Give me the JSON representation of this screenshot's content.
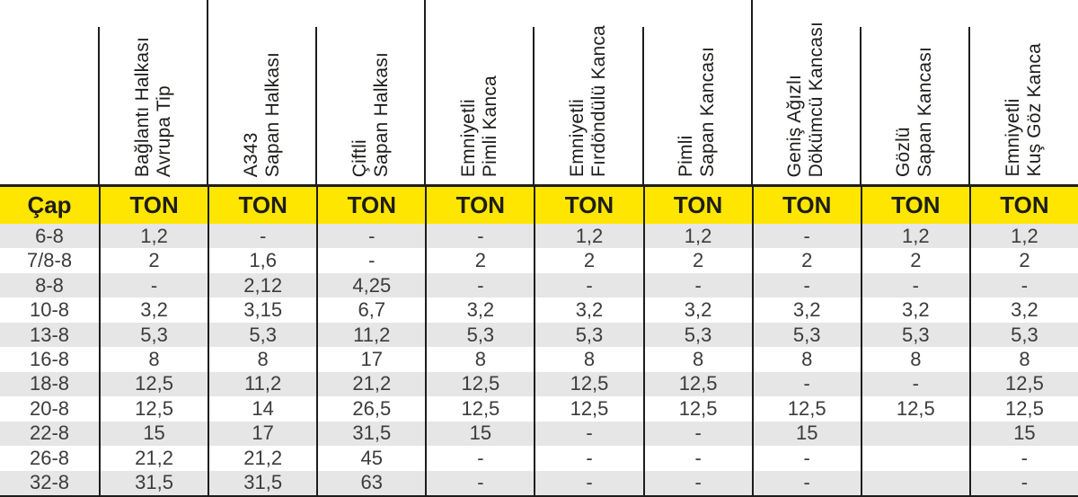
{
  "colors": {
    "header_yellow": "#ffe600",
    "row_stripe": "#e6e6e7",
    "line_black": "#1d1d1b",
    "text_dark": "#3c3c3b"
  },
  "chart_data": {
    "type": "table",
    "cap_label": "Çap",
    "unit_label": "TON",
    "columns": [
      {
        "line1": "Bağlantı Halkası",
        "line2": "Avrupa Tip",
        "group_start": false
      },
      {
        "line1": "A343",
        "line2": "Sapan Halkası",
        "group_start": true
      },
      {
        "line1": "Çiftli",
        "line2": "Sapan Halkası",
        "group_start": false
      },
      {
        "line1": "Emniyetli",
        "line2": "Pimli Kanca",
        "group_start": true
      },
      {
        "line1": "Emniyetli",
        "line2": "Fırdöndülü Kanca",
        "group_start": false
      },
      {
        "line1": "Pimli",
        "line2": "Sapan Kancası",
        "group_start": false
      },
      {
        "line1": "Geniş Ağızlı",
        "line2": "Dökümcü Kancası",
        "group_start": true
      },
      {
        "line1": "Gözlü",
        "line2": "Sapan Kancası",
        "group_start": false
      },
      {
        "line1": "Emniyetli",
        "line2": "Kuş Göz Kanca",
        "group_start": false
      }
    ],
    "rows": [
      {
        "cap": "6-8",
        "values": [
          "1,2",
          "-",
          "-",
          "-",
          "1,2",
          "1,2",
          "-",
          "1,2",
          "1,2"
        ]
      },
      {
        "cap": "7/8-8",
        "values": [
          "2",
          "1,6",
          "-",
          "2",
          "2",
          "2",
          "2",
          "2",
          "2"
        ]
      },
      {
        "cap": "8-8",
        "values": [
          "-",
          "2,12",
          "4,25",
          "-",
          "-",
          "-",
          "-",
          "-",
          "-"
        ]
      },
      {
        "cap": "10-8",
        "values": [
          "3,2",
          "3,15",
          "6,7",
          "3,2",
          "3,2",
          "3,2",
          "3,2",
          "3,2",
          "3,2"
        ]
      },
      {
        "cap": "13-8",
        "values": [
          "5,3",
          "5,3",
          "11,2",
          "5,3",
          "5,3",
          "5,3",
          "5,3",
          "5,3",
          "5,3"
        ]
      },
      {
        "cap": "16-8",
        "values": [
          "8",
          "8",
          "17",
          "8",
          "8",
          "8",
          "8",
          "8",
          "8"
        ]
      },
      {
        "cap": "18-8",
        "values": [
          "12,5",
          "11,2",
          "21,2",
          "12,5",
          "12,5",
          "12,5",
          "-",
          "-",
          "12,5"
        ]
      },
      {
        "cap": "20-8",
        "values": [
          "12,5",
          "14",
          "26,5",
          "12,5",
          "12,5",
          "12,5",
          "12,5",
          "12,5",
          "12,5"
        ]
      },
      {
        "cap": "22-8",
        "values": [
          "15",
          "17",
          "31,5",
          "15",
          "-",
          "-",
          "15",
          "",
          "15"
        ]
      },
      {
        "cap": "26-8",
        "values": [
          "21,2",
          "21,2",
          "45",
          "-",
          "-",
          "-",
          "-",
          "",
          "-"
        ]
      },
      {
        "cap": "32-8",
        "values": [
          "31,5",
          "31,5",
          "63",
          "-",
          "-",
          "-",
          "-",
          "",
          "-"
        ]
      }
    ]
  }
}
